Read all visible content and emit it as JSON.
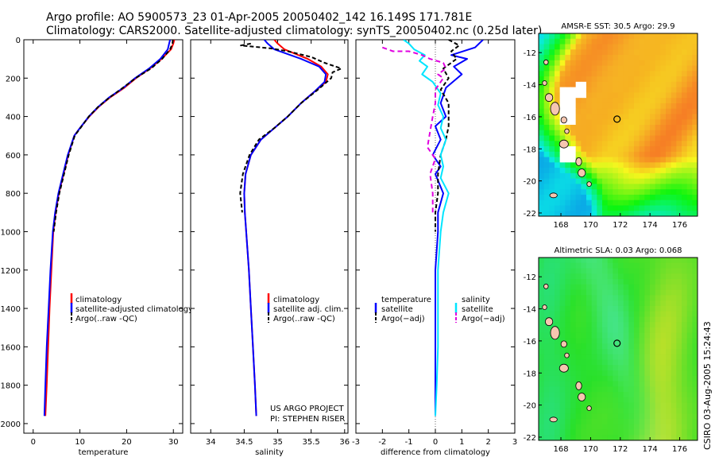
{
  "header": {
    "line1": "Argo profile: AO 5900573_23 01-Apr-2005 20050402_142 16.149S 171.781E",
    "line2": "Climatology: CARS2000. Satellite-adjusted climatology: synTS_20050402.nc (0.25d later)"
  },
  "side_stamp": "CSIRO 03-Aug-2005 15:24:43",
  "colors": {
    "climatology": "#ff0000",
    "satellite": "#0000ff",
    "argo": "#000000",
    "salinity_sat": "#00e5ff",
    "salinity_argo": "#e000e0"
  },
  "chart_data": [
    {
      "type": "line",
      "id": "temperature",
      "xlabel": "temperature",
      "ylabel": "",
      "xlim": [
        -2,
        32
      ],
      "ylim": [
        2050,
        0
      ],
      "xticks": [
        0,
        10,
        20,
        30
      ],
      "yticks": [
        0,
        200,
        400,
        600,
        800,
        1000,
        1200,
        1400,
        1600,
        1800,
        2000
      ],
      "legend": [
        "climatology",
        "satellite-adjusted climatology",
        "Argo(..raw -QC)"
      ],
      "series": [
        {
          "name": "climatology",
          "color": "#ff0000",
          "dash": "",
          "points": [
            [
              30.2,
              0
            ],
            [
              30.0,
              20
            ],
            [
              29.5,
              50
            ],
            [
              27.5,
              100
            ],
            [
              25,
              150
            ],
            [
              22,
              200
            ],
            [
              19.5,
              250
            ],
            [
              16.5,
              300
            ],
            [
              14,
              350
            ],
            [
              12,
              400
            ],
            [
              10,
              460
            ],
            [
              8.8,
              500
            ],
            [
              7.5,
              600
            ],
            [
              6.5,
              700
            ],
            [
              5.5,
              800
            ],
            [
              4.8,
              900
            ],
            [
              4.3,
              1000
            ],
            [
              3.9,
              1200
            ],
            [
              3.5,
              1400
            ],
            [
              3.2,
              1600
            ],
            [
              2.9,
              1800
            ],
            [
              2.6,
              1960
            ]
          ]
        },
        {
          "name": "satellite-adjusted climatology",
          "color": "#0000ff",
          "dash": "",
          "points": [
            [
              29.3,
              0
            ],
            [
              29.1,
              20
            ],
            [
              28.8,
              50
            ],
            [
              27.2,
              100
            ],
            [
              24.8,
              150
            ],
            [
              21.8,
              200
            ],
            [
              19.3,
              250
            ],
            [
              16.3,
              300
            ],
            [
              13.9,
              350
            ],
            [
              11.9,
              400
            ],
            [
              10,
              460
            ],
            [
              8.8,
              500
            ],
            [
              7.4,
              600
            ],
            [
              6.4,
              700
            ],
            [
              5.4,
              800
            ],
            [
              4.7,
              900
            ],
            [
              4.2,
              1000
            ],
            [
              3.7,
              1200
            ],
            [
              3.3,
              1400
            ],
            [
              2.9,
              1600
            ],
            [
              2.6,
              1800
            ],
            [
              2.4,
              1960
            ]
          ]
        },
        {
          "name": "Argo(..raw -QC)",
          "color": "#000000",
          "dash": "5,3",
          "points": [
            [
              29.9,
              0
            ],
            [
              29.8,
              20
            ],
            [
              29.3,
              50
            ],
            [
              27.6,
              100
            ],
            [
              25.2,
              150
            ],
            [
              21.9,
              200
            ],
            [
              19.2,
              250
            ],
            [
              16.4,
              300
            ],
            [
              13.9,
              350
            ],
            [
              11.9,
              400
            ],
            [
              10.1,
              460
            ],
            [
              8.9,
              500
            ],
            [
              7.6,
              600
            ],
            [
              6.6,
              700
            ],
            [
              5.6,
              800
            ],
            [
              4.9,
              900
            ],
            [
              4.4,
              1000
            ]
          ]
        }
      ]
    },
    {
      "type": "line",
      "id": "salinity",
      "xlabel": "salinity",
      "ylabel": "",
      "xlim": [
        33.7,
        36.05
      ],
      "ylim": [
        2050,
        0
      ],
      "xticks": [
        34,
        34.5,
        35,
        35.5,
        36
      ],
      "legend": [
        "climatology",
        "satellite adj. clim.",
        "Argo(..raw -QC)"
      ],
      "annotation": [
        "US ARGO PROJECT",
        "PI: STEPHEN RISER"
      ],
      "series": [
        {
          "name": "climatology",
          "color": "#ff0000",
          "dash": "",
          "points": [
            [
              34.95,
              0
            ],
            [
              35.0,
              20
            ],
            [
              35.1,
              50
            ],
            [
              35.45,
              100
            ],
            [
              35.65,
              140
            ],
            [
              35.75,
              180
            ],
            [
              35.72,
              220
            ],
            [
              35.55,
              270
            ],
            [
              35.35,
              330
            ],
            [
              35.15,
              400
            ],
            [
              34.95,
              460
            ],
            [
              34.75,
              520
            ],
            [
              34.6,
              600
            ],
            [
              34.52,
              700
            ],
            [
              34.5,
              800
            ],
            [
              34.51,
              900
            ],
            [
              34.53,
              1000
            ],
            [
              34.57,
              1200
            ],
            [
              34.6,
              1400
            ],
            [
              34.63,
              1600
            ],
            [
              34.66,
              1800
            ],
            [
              34.68,
              1960
            ]
          ]
        },
        {
          "name": "satellite adj. clim.",
          "color": "#0000ff",
          "dash": "",
          "points": [
            [
              34.8,
              0
            ],
            [
              34.85,
              20
            ],
            [
              34.95,
              50
            ],
            [
              35.35,
              100
            ],
            [
              35.62,
              140
            ],
            [
              35.72,
              180
            ],
            [
              35.7,
              220
            ],
            [
              35.55,
              270
            ],
            [
              35.35,
              330
            ],
            [
              35.15,
              400
            ],
            [
              34.95,
              460
            ],
            [
              34.75,
              520
            ],
            [
              34.6,
              600
            ],
            [
              34.52,
              700
            ],
            [
              34.5,
              800
            ],
            [
              34.51,
              900
            ],
            [
              34.53,
              1000
            ],
            [
              34.57,
              1200
            ],
            [
              34.6,
              1400
            ],
            [
              34.63,
              1600
            ],
            [
              34.66,
              1800
            ],
            [
              34.68,
              1960
            ]
          ]
        },
        {
          "name": "Argo(..raw -QC)",
          "color": "#000000",
          "dash": "5,3",
          "points": [
            [
              34.6,
              20
            ],
            [
              34.45,
              30
            ],
            [
              34.9,
              45
            ],
            [
              35.15,
              60
            ],
            [
              35.5,
              90
            ],
            [
              35.7,
              120
            ],
            [
              35.95,
              150
            ],
            [
              35.82,
              170
            ],
            [
              35.8,
              200
            ],
            [
              35.6,
              260
            ],
            [
              35.35,
              330
            ],
            [
              35.15,
              400
            ],
            [
              34.95,
              460
            ],
            [
              34.72,
              520
            ],
            [
              34.58,
              600
            ],
            [
              34.48,
              700
            ],
            [
              34.44,
              800
            ],
            [
              34.47,
              900
            ]
          ]
        }
      ]
    },
    {
      "type": "line",
      "id": "difference",
      "xlabel": "difference from climatology",
      "ylabel": "",
      "xlim": [
        -3,
        3
      ],
      "ylim": [
        2050,
        0
      ],
      "xticks": [
        -3,
        -2,
        -1,
        0,
        1,
        2,
        3
      ],
      "legend_left": [
        "temperature",
        "satellite",
        "Argo(−adj)"
      ],
      "legend_right": [
        "salinity",
        "satellite",
        "Argo(−adj)"
      ],
      "series": [
        {
          "name": "temperature satellite",
          "color": "#0000ff",
          "dash": "",
          "points": [
            [
              1.8,
              0
            ],
            [
              1.5,
              40
            ],
            [
              0.6,
              80
            ],
            [
              1.2,
              100
            ],
            [
              0.7,
              140
            ],
            [
              1.0,
              180
            ],
            [
              0.4,
              250
            ],
            [
              0.2,
              330
            ],
            [
              0.4,
              400
            ],
            [
              0.0,
              450
            ],
            [
              0.2,
              520
            ],
            [
              -0.1,
              600
            ],
            [
              0.2,
              660
            ],
            [
              0.0,
              700
            ],
            [
              0.3,
              800
            ],
            [
              0.1,
              900
            ],
            [
              0.1,
              1000
            ],
            [
              0.0,
              1200
            ],
            [
              0.0,
              1400
            ],
            [
              0.0,
              1600
            ],
            [
              0.0,
              1800
            ],
            [
              0.0,
              1960
            ]
          ]
        },
        {
          "name": "temperature Argo(-adj)",
          "color": "#000000",
          "dash": "5,3",
          "points": [
            [
              0.5,
              0
            ],
            [
              0.9,
              30
            ],
            [
              0.6,
              60
            ],
            [
              0.8,
              100
            ],
            [
              0.3,
              150
            ],
            [
              0.5,
              200
            ],
            [
              0.2,
              260
            ],
            [
              0.5,
              330
            ],
            [
              0.5,
              400
            ],
            [
              0.5,
              450
            ],
            [
              0.4,
              520
            ],
            [
              0.2,
              600
            ],
            [
              0.1,
              700
            ],
            [
              0.1,
              800
            ],
            [
              0.0,
              900
            ],
            [
              0.0,
              1000
            ]
          ]
        },
        {
          "name": "salinity satellite",
          "color": "#00e5ff",
          "dash": "",
          "points": [
            [
              -1.2,
              0
            ],
            [
              -1.0,
              20
            ],
            [
              -0.8,
              50
            ],
            [
              -0.4,
              80
            ],
            [
              -0.6,
              110
            ],
            [
              -0.3,
              140
            ],
            [
              -0.5,
              180
            ],
            [
              -0.1,
              220
            ],
            [
              0.2,
              280
            ],
            [
              0.1,
              340
            ],
            [
              0.3,
              400
            ],
            [
              0.2,
              460
            ],
            [
              0.4,
              520
            ],
            [
              0.2,
              600
            ],
            [
              0.3,
              660
            ],
            [
              0.2,
              720
            ],
            [
              0.5,
              800
            ],
            [
              0.3,
              900
            ],
            [
              0.2,
              1000
            ],
            [
              0.1,
              1200
            ],
            [
              0.1,
              1400
            ],
            [
              0.1,
              1600
            ],
            [
              0.05,
              1800
            ],
            [
              0.0,
              1960
            ]
          ]
        },
        {
          "name": "salinity Argo(-adj)",
          "color": "#e000e0",
          "dash": "6,4",
          "points": [
            [
              -2.0,
              40
            ],
            [
              -1.6,
              60
            ],
            [
              -1.0,
              60
            ],
            [
              -0.5,
              80
            ],
            [
              -0.2,
              100
            ],
            [
              0.3,
              120
            ],
            [
              0.4,
              150
            ],
            [
              0.1,
              180
            ],
            [
              0.3,
              200
            ],
            [
              0.0,
              260
            ],
            [
              0.0,
              330
            ],
            [
              -0.1,
              400
            ],
            [
              -0.2,
              480
            ],
            [
              -0.3,
              560
            ],
            [
              0.0,
              620
            ],
            [
              -0.2,
              700
            ],
            [
              -0.1,
              800
            ],
            [
              -0.1,
              900
            ]
          ]
        }
      ]
    },
    {
      "type": "heatmap",
      "id": "sst_map",
      "title": "AMSR-E SST: 30.5 Argo: 29.9",
      "xlim": [
        166.5,
        177.2
      ],
      "ylim": [
        -22.2,
        -10.8
      ],
      "xticks": [
        168,
        170,
        172,
        174,
        176
      ],
      "yticks": [
        -12,
        -14,
        -16,
        -18,
        -20,
        -22
      ],
      "marker": [
        171.781,
        -16.149
      ]
    },
    {
      "type": "heatmap",
      "id": "sla_map",
      "title": "Altimetric SLA: 0.03 Argo: 0.068",
      "xlim": [
        166.5,
        177.2
      ],
      "ylim": [
        -22.2,
        -10.8
      ],
      "xticks": [
        168,
        170,
        172,
        174,
        176
      ],
      "yticks": [
        -12,
        -14,
        -16,
        -18,
        -20,
        -22
      ],
      "marker": [
        171.781,
        -16.149
      ]
    }
  ]
}
